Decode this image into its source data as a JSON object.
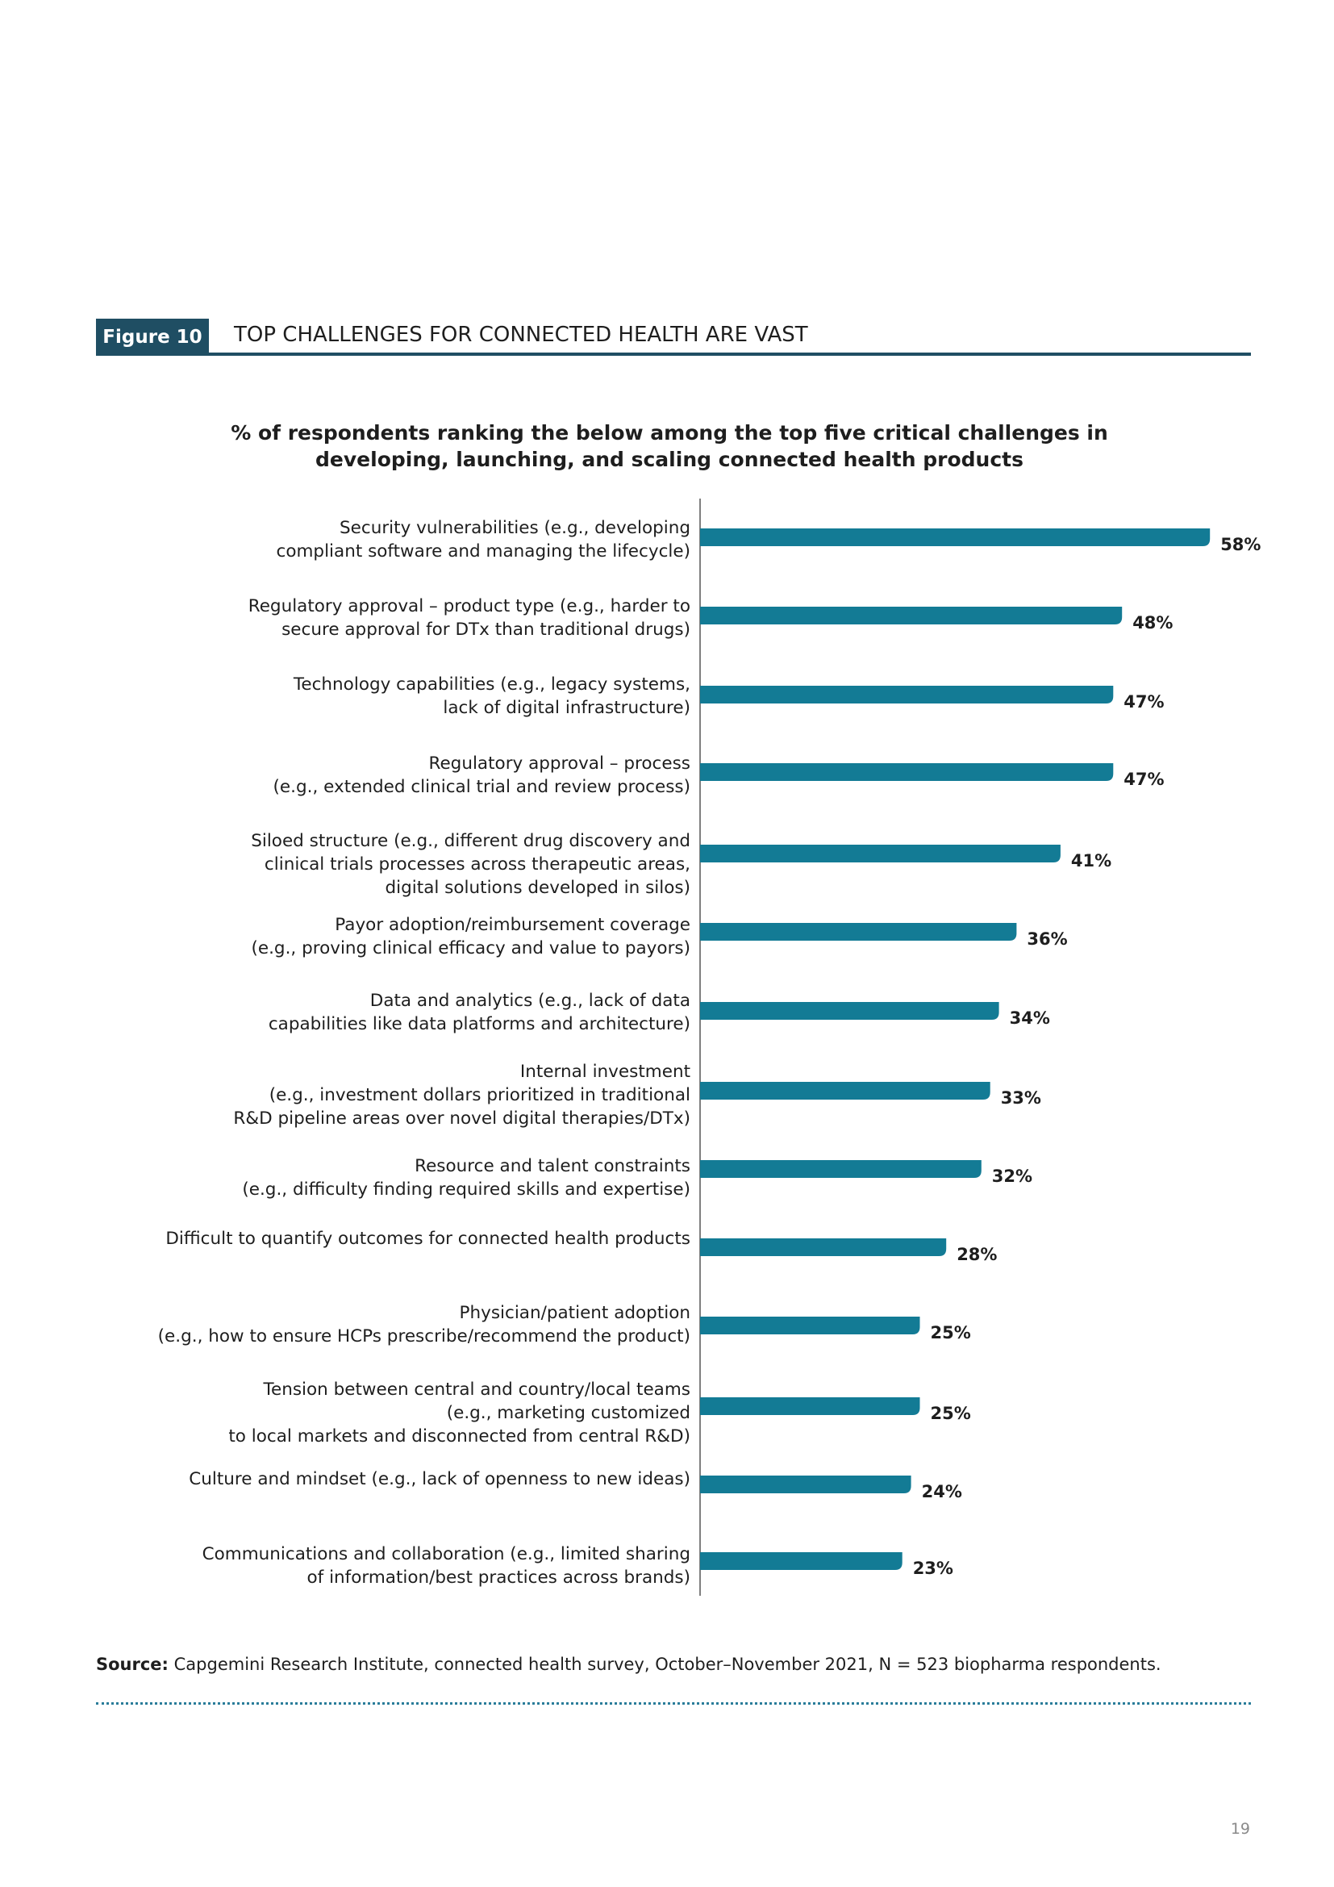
{
  "figure": {
    "tag": "Figure 10",
    "title": "TOP CHALLENGES FOR CONNECTED HEALTH ARE VAST"
  },
  "chart_data": {
    "type": "bar",
    "orientation": "horizontal",
    "title": "% of respondents ranking the below among the top five critical challenges in developing, launching, and scaling connected health products",
    "categories": [
      [
        "Security vulnerabilities (e.g., developing",
        "compliant software and managing the lifecycle)"
      ],
      [
        "Regulatory approval – product type (e.g., harder to",
        "secure approval for DTx than traditional drugs)"
      ],
      [
        "Technology capabilities (e.g., legacy systems,",
        "lack of digital infrastructure)"
      ],
      [
        "Regulatory approval – process",
        "(e.g., extended clinical trial and review process)"
      ],
      [
        "Siloed structure (e.g., different drug discovery and",
        "clinical trials processes across therapeutic areas,",
        "digital solutions developed in silos)"
      ],
      [
        "Payor adoption/reimbursement coverage",
        "(e.g., proving clinical efficacy and value to payors)"
      ],
      [
        "Data and analytics (e.g., lack of data",
        "capabilities like data platforms and architecture)"
      ],
      [
        "Internal investment",
        "(e.g., investment dollars prioritized in traditional",
        "R&D pipeline areas over novel digital therapies/DTx)"
      ],
      [
        "Resource and talent constraints",
        "(e.g., difficulty finding required skills and expertise)"
      ],
      [
        "Difficult to quantify outcomes for connected health products"
      ],
      [
        "Physician/patient adoption",
        "(e.g., how to ensure HCPs prescribe/recommend the product)"
      ],
      [
        "Tension between central and country/local teams",
        "(e.g., marketing customized",
        "to local markets and disconnected from central R&D)"
      ],
      [
        "Culture and mindset (e.g., lack of openness to new ideas)"
      ],
      [
        "Communications and collaboration (e.g., limited sharing",
        "of information/best practices across brands)"
      ]
    ],
    "values": [
      58,
      48,
      47,
      47,
      41,
      36,
      34,
      33,
      32,
      28,
      25,
      25,
      24,
      23
    ],
    "value_labels": [
      "58%",
      "48%",
      "47%",
      "47%",
      "41%",
      "36%",
      "34%",
      "33%",
      "32%",
      "28%",
      "25%",
      "25%",
      "24%",
      "23%"
    ],
    "xlim": [
      0,
      60
    ],
    "grid": false,
    "bar_color": "#137b95"
  },
  "source": {
    "label": "Source:",
    "text": " Capgemini Research Institute, connected health survey, October–November 2021, N = 523 biopharma respondents."
  },
  "page_number": "19"
}
